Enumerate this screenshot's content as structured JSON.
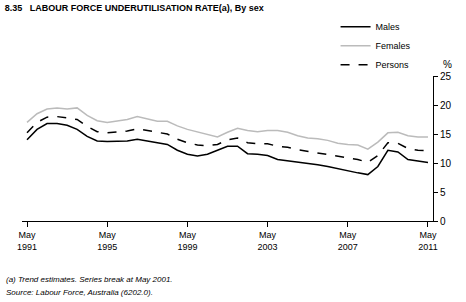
{
  "chart_data": {
    "type": "line",
    "title": "8.35   LABOUR FORCE UNDERUTILISATION RATE(a), By sex",
    "ylabel": "%",
    "notes": [
      "(a) Trend estimates. Series break at May 2001.",
      "Source: Labour Force, Australia (6202.0)."
    ],
    "categories": [
      "May 1991",
      null,
      null,
      null,
      null,
      null,
      null,
      null,
      "May 1995",
      null,
      null,
      null,
      null,
      null,
      null,
      null,
      "May 1999",
      null,
      null,
      null,
      null,
      null,
      null,
      null,
      "May 2003",
      null,
      null,
      null,
      null,
      null,
      null,
      null,
      "May 2007",
      null,
      null,
      null,
      null,
      null,
      null,
      null,
      "May 2011"
    ],
    "series": [
      {
        "name": "Males",
        "color": "#000000",
        "line_style": "solid",
        "values": [
          14,
          15.8,
          16.8,
          16.8,
          16.5,
          15.8,
          14.6,
          13.8,
          13.7,
          13.7,
          13.8,
          14.1,
          13.8,
          13.6,
          13.2,
          12.2,
          11.5,
          11.2,
          11.5,
          12.2,
          12.9,
          12.9,
          11.6,
          11.5,
          11.3,
          10.6,
          10.4,
          10.2,
          10,
          9.7,
          9.4,
          9.0,
          8.6,
          8.3,
          8.0,
          9.4,
          12.2,
          11.9,
          10.6,
          10.3,
          10.1
        ]
      },
      {
        "name": "Females",
        "color": "#bbbbbb",
        "line_style": "solid",
        "values": [
          17,
          18.5,
          19.3,
          19.5,
          19.3,
          19.5,
          18.2,
          17.3,
          17,
          17.2,
          17.5,
          18,
          17.6,
          17.2,
          17.2,
          16.4,
          15.8,
          15.4,
          14.9,
          14.5,
          15.3,
          16,
          15.6,
          15.4,
          15.6,
          15.6,
          15.3,
          14.7,
          14.3,
          14.2,
          13.9,
          13.4,
          13.2,
          13.1,
          12.4,
          13.6,
          15.2,
          15.3,
          14.7,
          14.5,
          14.5
        ]
      },
      {
        "name": "Persons",
        "color": "#000000",
        "line_style": "dashed",
        "values": [
          15.2,
          17.0,
          17.9,
          18.0,
          17.8,
          17.5,
          16.3,
          15.4,
          15.2,
          15.3,
          15.5,
          15.9,
          15.6,
          15.3,
          15.0,
          14.1,
          13.5,
          13.1,
          13.0,
          13.2,
          14.0,
          14.3,
          13.5,
          13.3,
          13.3,
          12.9,
          12.7,
          12.3,
          12.0,
          11.8,
          11.5,
          11.1,
          10.8,
          10.6,
          10.1,
          11.3,
          13.5,
          13.4,
          12.5,
          12.2,
          12.1
        ]
      }
    ],
    "ylim": [
      0,
      25
    ],
    "yticks": [
      0,
      5,
      10,
      15,
      20,
      25
    ],
    "grid": false,
    "legend": "top right"
  }
}
